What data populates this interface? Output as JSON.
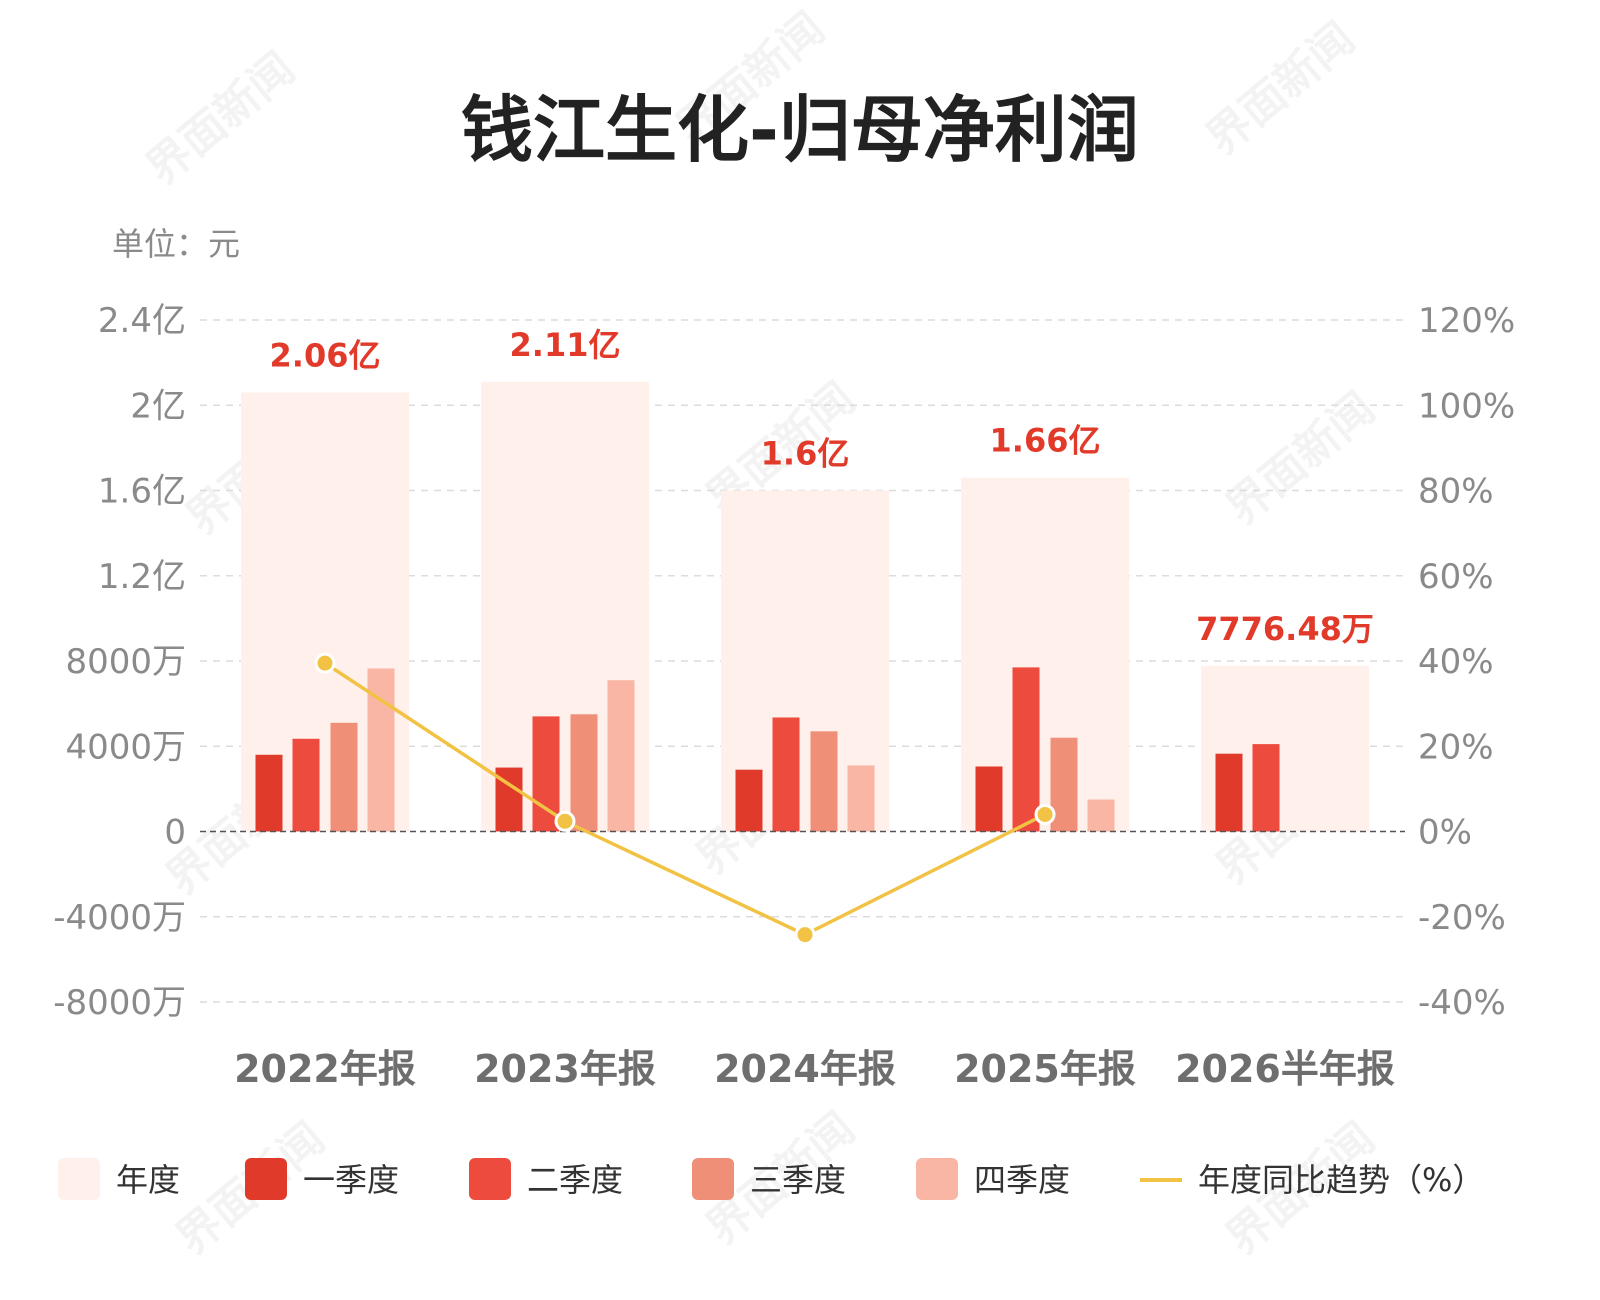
{
  "chart_data": {
    "type": "bar",
    "title": "钱江生化-归母净利润",
    "unit_label": "单位：元",
    "categories": [
      "2022年报",
      "2023年报",
      "2024年报",
      "2025年报",
      "2026半年报"
    ],
    "ylim": [
      -8000,
      24000
    ],
    "y_unit": "万元",
    "y_ticks": [
      {
        "value": 24000,
        "label": "2.4亿"
      },
      {
        "value": 20000,
        "label": "2亿"
      },
      {
        "value": 16000,
        "label": "1.6亿"
      },
      {
        "value": 12000,
        "label": "1.2亿"
      },
      {
        "value": 8000,
        "label": "8000万"
      },
      {
        "value": 4000,
        "label": "4000万"
      },
      {
        "value": 0,
        "label": "0"
      },
      {
        "value": -4000,
        "label": "-4000万"
      },
      {
        "value": -8000,
        "label": "-8000万"
      }
    ],
    "y2lim": [
      -40,
      120
    ],
    "y2_ticks": [
      {
        "value": 120,
        "label": "120%"
      },
      {
        "value": 100,
        "label": "100%"
      },
      {
        "value": 80,
        "label": "80%"
      },
      {
        "value": 60,
        "label": "60%"
      },
      {
        "value": 40,
        "label": "40%"
      },
      {
        "value": 20,
        "label": "20%"
      },
      {
        "value": 0,
        "label": "0%"
      },
      {
        "value": -20,
        "label": "-20%"
      },
      {
        "value": -40,
        "label": "-40%"
      }
    ],
    "annual": {
      "name": "年度",
      "values": [
        20600,
        21100,
        16000,
        16600,
        7776.48
      ],
      "labels": [
        "2.06亿",
        "2.11亿",
        "1.6亿",
        "1.66亿",
        "7776.48万"
      ],
      "color": "#fff0ec"
    },
    "series": [
      {
        "name": "一季度",
        "color": "#e03a2b",
        "values": [
          3600,
          3000,
          2900,
          3050,
          3650
        ]
      },
      {
        "name": "二季度",
        "color": "#ec4b3e",
        "values": [
          4350,
          5400,
          5350,
          7700,
          4100
        ]
      },
      {
        "name": "三季度",
        "color": "#f08f78",
        "values": [
          5100,
          5500,
          4700,
          4400,
          null
        ]
      },
      {
        "name": "四季度",
        "color": "#f9b6a5",
        "values": [
          7650,
          7100,
          3100,
          1500,
          null
        ]
      }
    ],
    "line": {
      "name": "年度同比趋势（%）",
      "color": "#f2c244",
      "values": [
        39.5,
        2.4,
        -24.2,
        4.0
      ]
    },
    "grid": true,
    "legend_position": "bottom",
    "watermark": "界面新闻"
  }
}
